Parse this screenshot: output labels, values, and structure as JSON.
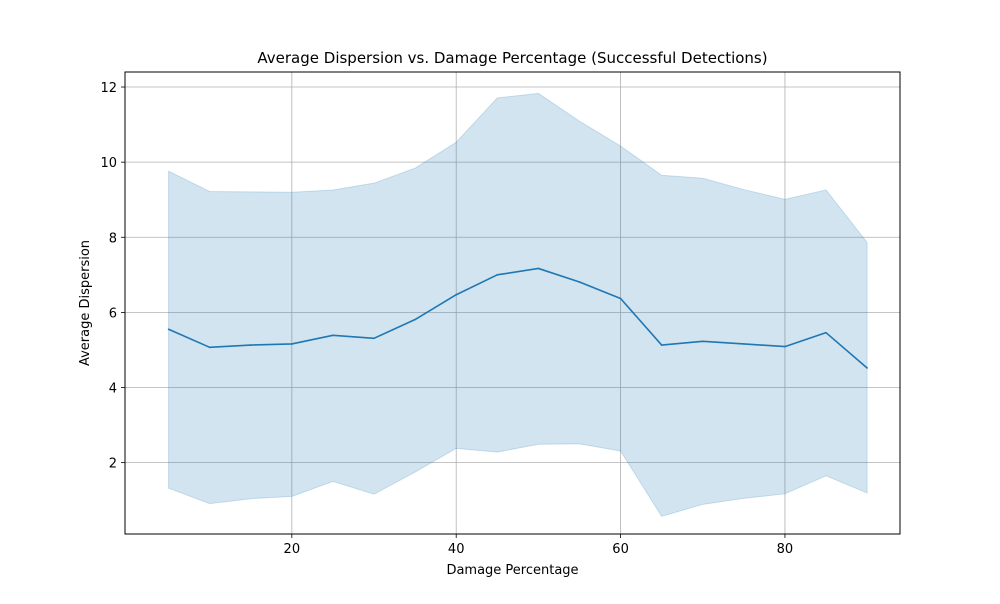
{
  "chart_data": {
    "type": "line",
    "title": "Average Dispersion vs. Damage Percentage (Successful Detections)",
    "xlabel": "Damage Percentage",
    "ylabel": "Average Dispersion",
    "xlim": [
      -0.3,
      94
    ],
    "ylim": [
      0.1,
      12.4
    ],
    "xticks": [
      20,
      40,
      60,
      80
    ],
    "yticks": [
      2,
      4,
      6,
      8,
      10,
      12
    ],
    "grid": true,
    "series": [
      {
        "x": [
          5,
          10,
          15,
          20,
          25,
          30,
          35,
          40,
          45,
          50,
          55,
          60,
          65,
          70,
          75,
          80,
          85,
          90
        ],
        "values": [
          5.55,
          5.07,
          5.13,
          5.16,
          5.39,
          5.31,
          5.81,
          6.47,
          7.0,
          7.17,
          6.81,
          6.37,
          5.13,
          5.23,
          5.16,
          5.09,
          5.46,
          4.52
        ],
        "band_upper": [
          9.76,
          9.22,
          9.21,
          9.2,
          9.26,
          9.44,
          9.84,
          10.53,
          11.71,
          11.83,
          11.09,
          10.43,
          9.65,
          9.57,
          9.27,
          9.01,
          9.26,
          7.86
        ],
        "band_lower": [
          1.32,
          0.91,
          1.04,
          1.1,
          1.5,
          1.16,
          1.75,
          2.38,
          2.28,
          2.49,
          2.5,
          2.31,
          0.57,
          0.89,
          1.05,
          1.17,
          1.65,
          1.19
        ],
        "color": "#1f77b4",
        "band_color": "#1f77b4"
      }
    ]
  }
}
